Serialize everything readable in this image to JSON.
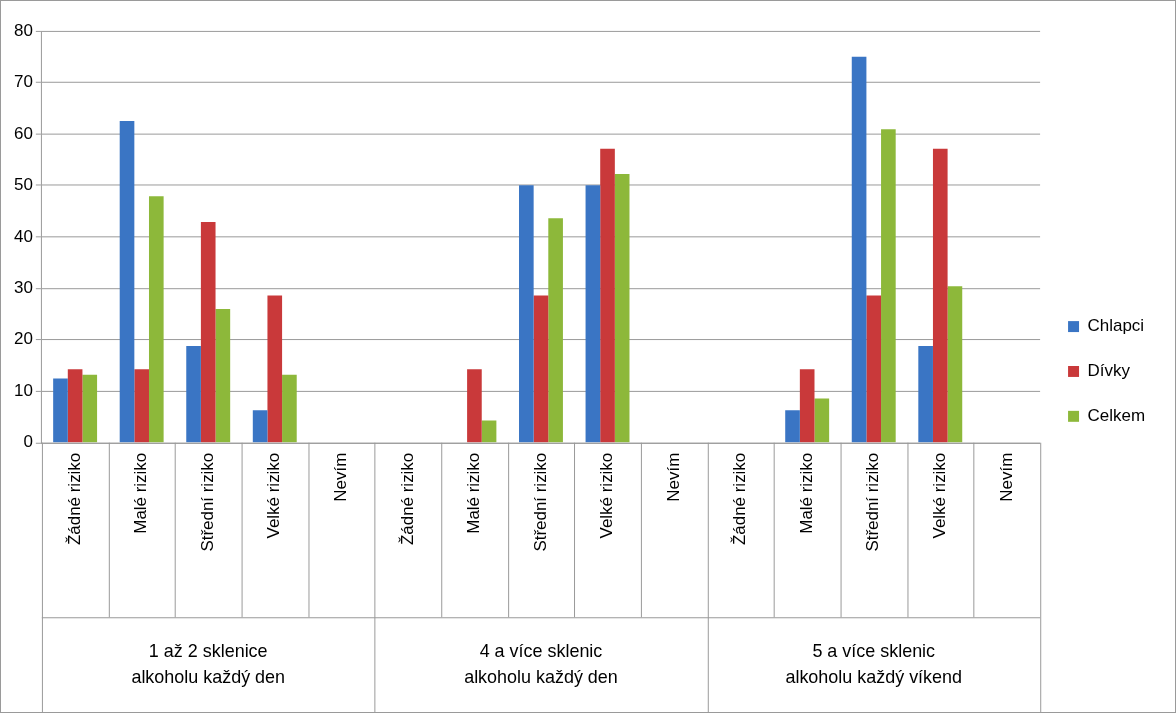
{
  "chart_data": {
    "type": "bar",
    "categories": [
      "Žádné riziko",
      "Malé riziko",
      "Střední riziko",
      "Velké riziko",
      "Nevím",
      "Žádné riziko",
      "Malé riziko",
      "Střední riziko",
      "Velké riziko",
      "Nevím",
      "Žádné riziko",
      "Malé riziko",
      "Střední riziko",
      "Velké riziko",
      "Nevím"
    ],
    "series": [
      {
        "name": "Chlapci",
        "color": "#3a75c4",
        "values": [
          12.5,
          62.5,
          18.8,
          6.3,
          0,
          0,
          0,
          50,
          50,
          0,
          0,
          6.3,
          75,
          18.8,
          0
        ]
      },
      {
        "name": "Dívky",
        "color": "#c9393a",
        "values": [
          14.3,
          14.3,
          42.9,
          28.6,
          0,
          0,
          14.3,
          28.6,
          57.1,
          0,
          0,
          14.3,
          28.6,
          57.1,
          0
        ]
      },
      {
        "name": "Celkem",
        "color": "#8db83a",
        "values": [
          13.2,
          47.9,
          26,
          13.2,
          0,
          0,
          4.3,
          43.6,
          52.2,
          0,
          0,
          8.6,
          60.9,
          30.4,
          0
        ]
      }
    ],
    "annotations": [
      "1 až 2 sklenice\nalkoholu každý den",
      "4 a více sklenic\nalkoholu každý den",
      "5 a více sklenic\nalkoholu každý víkend"
    ],
    "ylim": [
      0,
      80
    ],
    "yticks": [
      0,
      10,
      20,
      30,
      40,
      50,
      60,
      70,
      80
    ],
    "grid": "y",
    "legend": "right"
  }
}
